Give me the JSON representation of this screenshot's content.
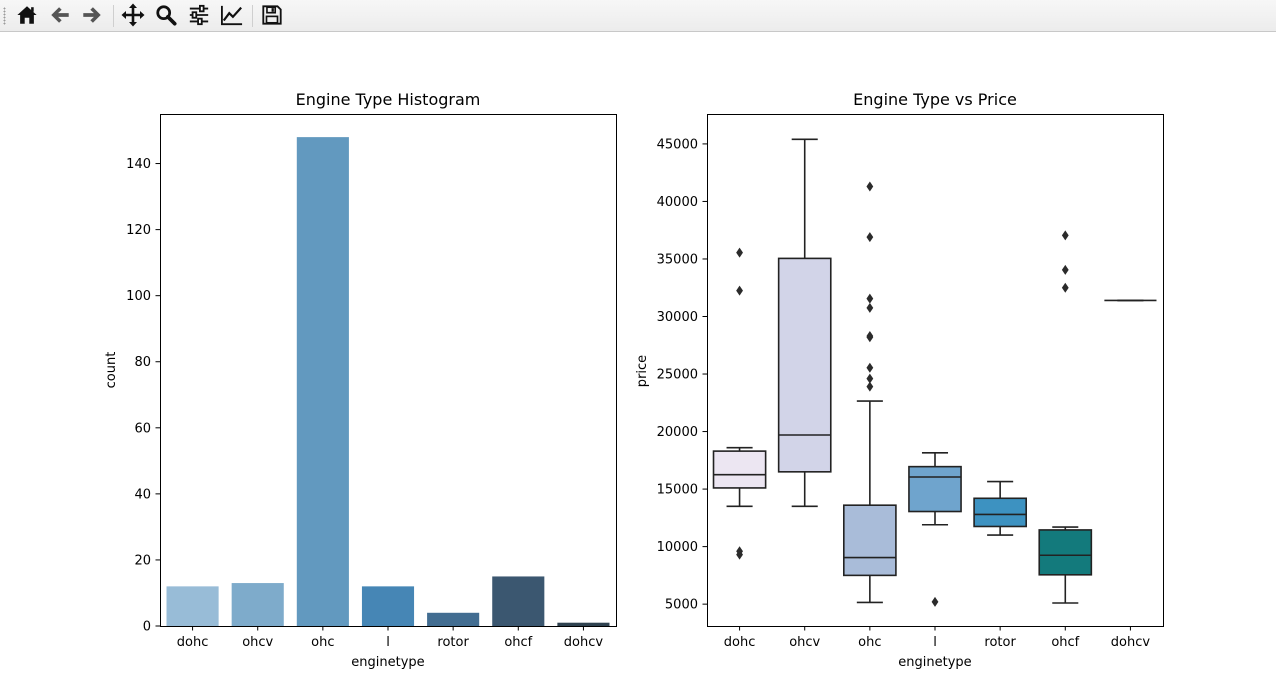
{
  "toolbar": {
    "buttons": [
      {
        "name": "home-button",
        "icon": "home-icon"
      },
      {
        "name": "back-button",
        "icon": "arrow-left-icon"
      },
      {
        "name": "forward-button",
        "icon": "arrow-right-icon"
      },
      {
        "name": "pan-button",
        "icon": "move-icon"
      },
      {
        "name": "zoom-button",
        "icon": "magnifier-icon"
      },
      {
        "name": "configure-subplots-button",
        "icon": "sliders-icon"
      },
      {
        "name": "edit-axis-button",
        "icon": "line-chart-icon"
      },
      {
        "name": "save-button",
        "icon": "floppy-disk-icon"
      }
    ]
  },
  "chart_data": [
    {
      "type": "bar",
      "title": "Engine Type Histogram",
      "xlabel": "enginetype",
      "ylabel": "count",
      "categories": [
        "dohc",
        "ohcv",
        "ohc",
        "l",
        "rotor",
        "ohcf",
        "dohcv"
      ],
      "values": [
        12,
        13,
        148,
        12,
        4,
        15,
        1
      ],
      "ylim": [
        0,
        155
      ],
      "yticks": [
        0,
        20,
        40,
        60,
        80,
        100,
        120,
        140
      ],
      "colors": [
        "#98bcd7",
        "#7eabcb",
        "#6299bf",
        "#4686b5",
        "#426d91",
        "#3b5770",
        "#2f4250"
      ],
      "grid": false,
      "legend": "none"
    },
    {
      "type": "box",
      "title": "Engine Type vs Price",
      "xlabel": "enginetype",
      "ylabel": "price",
      "categories": [
        "dohc",
        "ohcv",
        "ohc",
        "l",
        "rotor",
        "ohcf",
        "dohcv"
      ],
      "ylim": [
        3100,
        47600
      ],
      "yticks": [
        5000,
        10000,
        15000,
        20000,
        25000,
        30000,
        35000,
        40000,
        45000
      ],
      "colors": [
        "#ece6f2",
        "#d2d4e8",
        "#a9bcd9",
        "#6fa4cd",
        "#3d92c1",
        "#137a7c",
        "#0a6464"
      ],
      "boxes": [
        {
          "q1": 15100,
          "median": 16250,
          "q3": 18300,
          "whisker_low": 13500,
          "whisker_high": 18600,
          "outliers": [
            9300,
            9600,
            32250,
            35550
          ]
        },
        {
          "q1": 16500,
          "median": 19700,
          "q3": 35050,
          "whisker_low": 13500,
          "whisker_high": 45400,
          "outliers": []
        },
        {
          "q1": 7500,
          "median": 9050,
          "q3": 13600,
          "whisker_low": 5150,
          "whisker_high": 22650,
          "outliers": [
            23900,
            24600,
            25550,
            28200,
            28300,
            30750,
            31550,
            36900,
            41300
          ]
        },
        {
          "q1": 13050,
          "median": 16050,
          "q3": 16950,
          "whisker_low": 11900,
          "whisker_high": 18150,
          "outliers": [
            5200
          ]
        },
        {
          "q1": 11750,
          "median": 12800,
          "q3": 14200,
          "whisker_low": 11000,
          "whisker_high": 15650,
          "outliers": []
        },
        {
          "q1": 7550,
          "median": 9250,
          "q3": 11450,
          "whisker_low": 5100,
          "whisker_high": 11700,
          "outliers": [
            32500,
            34050,
            37050
          ]
        },
        {
          "q1": 31400,
          "median": 31400,
          "q3": 31400,
          "whisker_low": 31400,
          "whisker_high": 31400,
          "outliers": []
        }
      ],
      "grid": false,
      "legend": "none"
    }
  ]
}
